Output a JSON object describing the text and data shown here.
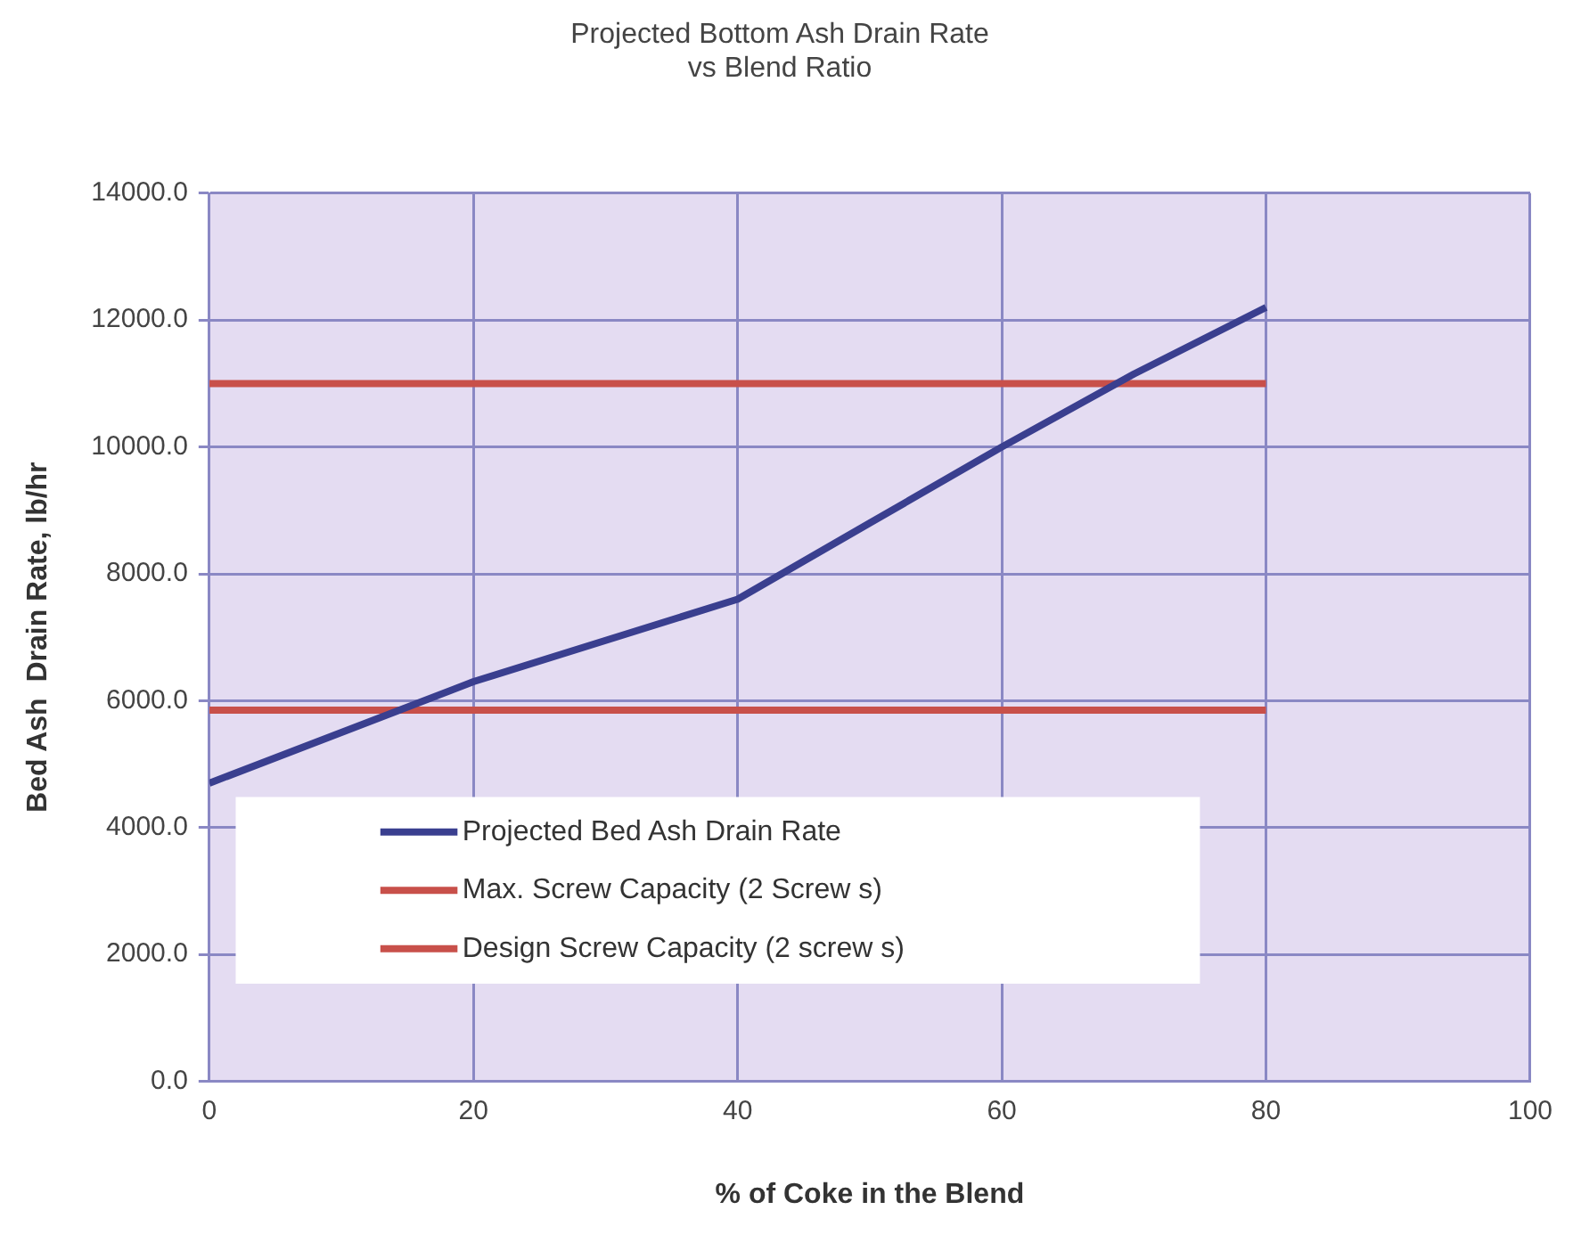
{
  "chart_data": {
    "type": "line",
    "title": "Projected Bottom Ash Drain Rate\nvs Blend Ratio",
    "xlabel": "% of Coke in the Blend",
    "ylabel": "Bed Ash  Drain Rate, lb/hr",
    "series": [
      {
        "name": "Projected Bed Ash Drain Rate",
        "color": "#3a3f8f",
        "x": [
          0,
          20,
          40,
          45,
          50,
          60,
          70,
          80
        ],
        "values": [
          4700,
          6300,
          7600,
          8200,
          8800,
          10000,
          11150,
          12200
        ]
      },
      {
        "name": "Max. Screw Capacity (2 Screw s)",
        "color": "#c8504a",
        "x": [
          0,
          80
        ],
        "values": [
          11000,
          11000
        ]
      },
      {
        "name": "Design Screw Capacity (2 screw s)",
        "color": "#c8504a",
        "x": [
          0,
          80
        ],
        "values": [
          5850,
          5850
        ]
      }
    ],
    "xlim": [
      0,
      100
    ],
    "xticks": [
      0,
      20,
      40,
      60,
      80,
      100
    ],
    "ylim": [
      0,
      14000
    ],
    "yticks": [
      {
        "value": 0,
        "label": "0.0"
      },
      {
        "value": 2000,
        "label": "2000.0"
      },
      {
        "value": 4000,
        "label": "4000.0"
      },
      {
        "value": 6000,
        "label": "6000.0"
      },
      {
        "value": 8000,
        "label": "8000.0"
      },
      {
        "value": 10000,
        "label": "10000.0"
      },
      {
        "value": 12000,
        "label": "12000.0"
      },
      {
        "value": 14000,
        "label": "14000.0"
      }
    ],
    "grid": true,
    "legend": "bottom left",
    "marker": "none",
    "line_style": "solid"
  }
}
